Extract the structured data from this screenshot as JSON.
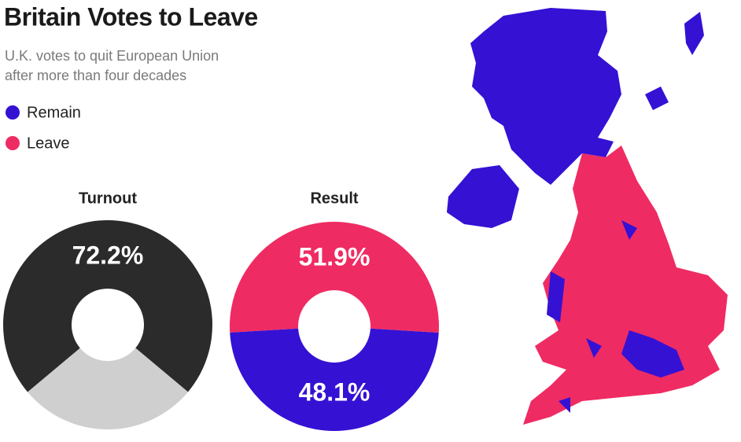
{
  "title": "Britain Votes to Leave",
  "subtitle": [
    "U.K. votes to quit European Union",
    "after more than four decades"
  ],
  "chart_data": [
    {
      "type": "pie",
      "title": "Turnout",
      "values": [
        72.2,
        27.8
      ],
      "value_labels": [
        "72.2%",
        null
      ],
      "colors": [
        "#2b2b2b",
        "#cfcfcf"
      ]
    },
    {
      "type": "pie",
      "title": "Result",
      "categories": [
        "Leave",
        "Remain"
      ],
      "values": [
        51.9,
        48.1
      ],
      "value_labels": [
        "51.9%",
        "48.1%"
      ],
      "colors": [
        "#ef2b63",
        "#3511d4"
      ]
    }
  ]
}
